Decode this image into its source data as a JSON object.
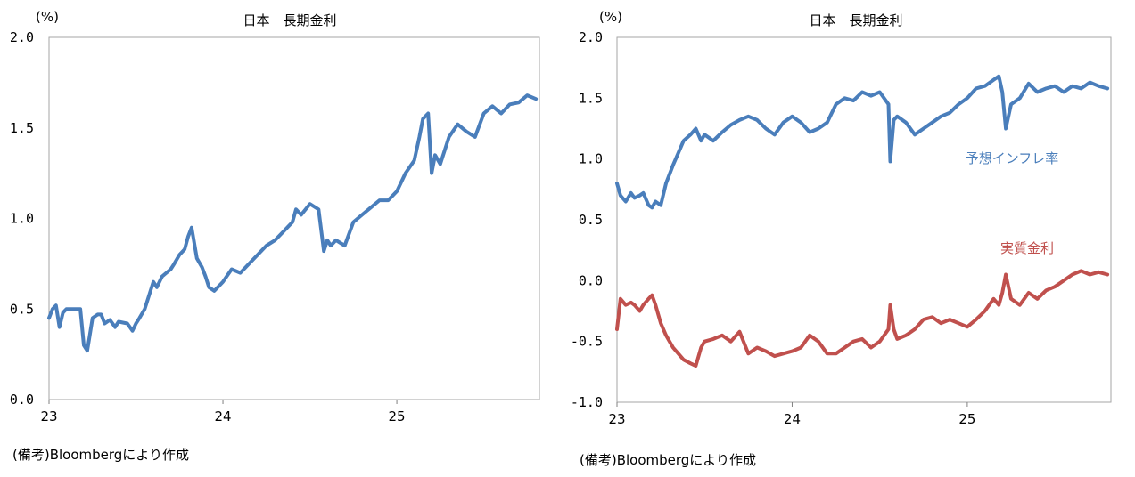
{
  "chart_data": [
    {
      "type": "line",
      "title": "日本　長期金利",
      "unit_label": "(%)",
      "ylim": [
        0.0,
        2.0
      ],
      "yticks": [
        "2.0",
        "1.5",
        "1.0",
        "0.5",
        "0.0"
      ],
      "xticks": [
        "23",
        "24",
        "25"
      ],
      "xlim": [
        23.0,
        25.82
      ],
      "grid": false,
      "legend": "none",
      "series": [
        {
          "color": "#4a7ebb",
          "x": [
            23.0,
            23.02,
            23.04,
            23.06,
            23.08,
            23.1,
            23.15,
            23.18,
            23.2,
            23.22,
            23.25,
            23.28,
            23.3,
            23.32,
            23.35,
            23.38,
            23.4,
            23.45,
            23.48,
            23.5,
            23.52,
            23.55,
            23.6,
            23.62,
            23.65,
            23.7,
            23.72,
            23.75,
            23.78,
            23.8,
            23.82,
            23.85,
            23.88,
            23.9,
            23.92,
            23.95,
            24.0,
            24.05,
            24.1,
            24.15,
            24.2,
            24.25,
            24.3,
            24.35,
            24.4,
            24.42,
            24.45,
            24.5,
            24.55,
            24.58,
            24.6,
            24.62,
            24.65,
            24.7,
            24.75,
            24.8,
            24.85,
            24.9,
            24.95,
            25.0,
            25.05,
            25.1,
            25.13,
            25.15,
            25.18,
            25.2,
            25.22,
            25.25,
            25.3,
            25.35,
            25.4,
            25.45,
            25.5,
            25.55,
            25.6,
            25.65,
            25.7,
            25.75,
            25.8
          ],
          "values": [
            0.45,
            0.5,
            0.52,
            0.4,
            0.48,
            0.5,
            0.5,
            0.5,
            0.3,
            0.27,
            0.45,
            0.47,
            0.47,
            0.42,
            0.44,
            0.4,
            0.43,
            0.42,
            0.38,
            0.42,
            0.45,
            0.5,
            0.65,
            0.62,
            0.68,
            0.72,
            0.75,
            0.8,
            0.83,
            0.9,
            0.95,
            0.78,
            0.73,
            0.68,
            0.62,
            0.6,
            0.65,
            0.72,
            0.7,
            0.75,
            0.8,
            0.85,
            0.88,
            0.93,
            0.98,
            1.05,
            1.02,
            1.08,
            1.05,
            0.82,
            0.88,
            0.85,
            0.88,
            0.85,
            0.98,
            1.02,
            1.06,
            1.1,
            1.1,
            1.15,
            1.25,
            1.32,
            1.45,
            1.55,
            1.58,
            1.25,
            1.35,
            1.3,
            1.45,
            1.52,
            1.48,
            1.45,
            1.58,
            1.62,
            1.58,
            1.63,
            1.64,
            1.68,
            1.66
          ]
        }
      ],
      "note": "(備考)Bloombergにより作成"
    },
    {
      "type": "line",
      "title": "日本　長期金利",
      "unit_label": "(%)",
      "ylim": [
        -1.0,
        2.0
      ],
      "yticks": [
        "2.0",
        "1.5",
        "1.0",
        "0.5",
        "0.0",
        "-0.5",
        "-1.0"
      ],
      "xticks": [
        "23",
        "24",
        "25"
      ],
      "xlim": [
        23.0,
        25.82
      ],
      "grid": false,
      "legend": "inline",
      "series": [
        {
          "name": "予想インフレ率",
          "color": "#4a7ebb",
          "x": [
            23.0,
            23.02,
            23.05,
            23.08,
            23.1,
            23.13,
            23.15,
            23.18,
            23.2,
            23.22,
            23.25,
            23.28,
            23.32,
            23.35,
            23.38,
            23.42,
            23.45,
            23.48,
            23.5,
            23.55,
            23.6,
            23.65,
            23.7,
            23.75,
            23.8,
            23.85,
            23.9,
            23.95,
            24.0,
            24.05,
            24.1,
            24.15,
            24.2,
            24.25,
            24.3,
            24.35,
            24.4,
            24.45,
            24.5,
            24.55,
            24.56,
            24.58,
            24.6,
            24.65,
            24.7,
            24.75,
            24.8,
            24.85,
            24.9,
            24.95,
            25.0,
            25.05,
            25.1,
            25.15,
            25.18,
            25.2,
            25.22,
            25.25,
            25.3,
            25.35,
            25.4,
            25.45,
            25.5,
            25.55,
            25.6,
            25.65,
            25.7,
            25.75,
            25.8
          ],
          "values": [
            0.8,
            0.7,
            0.65,
            0.72,
            0.68,
            0.7,
            0.72,
            0.62,
            0.6,
            0.65,
            0.62,
            0.8,
            0.95,
            1.05,
            1.15,
            1.2,
            1.25,
            1.15,
            1.2,
            1.15,
            1.22,
            1.28,
            1.32,
            1.35,
            1.32,
            1.25,
            1.2,
            1.3,
            1.35,
            1.3,
            1.22,
            1.25,
            1.3,
            1.45,
            1.5,
            1.48,
            1.55,
            1.52,
            1.55,
            1.45,
            0.98,
            1.32,
            1.35,
            1.3,
            1.2,
            1.25,
            1.3,
            1.35,
            1.38,
            1.45,
            1.5,
            1.58,
            1.6,
            1.65,
            1.68,
            1.55,
            1.25,
            1.45,
            1.5,
            1.62,
            1.55,
            1.58,
            1.6,
            1.55,
            1.6,
            1.58,
            1.63,
            1.6,
            1.58
          ]
        },
        {
          "name": "実質金利",
          "color": "#c0504d",
          "x": [
            23.0,
            23.02,
            23.05,
            23.08,
            23.1,
            23.13,
            23.15,
            23.18,
            23.2,
            23.22,
            23.25,
            23.28,
            23.32,
            23.35,
            23.38,
            23.42,
            23.45,
            23.48,
            23.5,
            23.55,
            23.6,
            23.65,
            23.7,
            23.75,
            23.8,
            23.85,
            23.9,
            23.95,
            24.0,
            24.05,
            24.1,
            24.15,
            24.2,
            24.25,
            24.3,
            24.35,
            24.4,
            24.45,
            24.5,
            24.55,
            24.56,
            24.58,
            24.6,
            24.65,
            24.7,
            24.75,
            24.8,
            24.85,
            24.9,
            24.95,
            25.0,
            25.05,
            25.1,
            25.15,
            25.18,
            25.2,
            25.22,
            25.25,
            25.3,
            25.35,
            25.4,
            25.45,
            25.5,
            25.55,
            25.6,
            25.65,
            25.7,
            25.75,
            25.8
          ],
          "values": [
            -0.4,
            -0.15,
            -0.2,
            -0.18,
            -0.2,
            -0.25,
            -0.2,
            -0.15,
            -0.12,
            -0.2,
            -0.35,
            -0.45,
            -0.55,
            -0.6,
            -0.65,
            -0.68,
            -0.7,
            -0.55,
            -0.5,
            -0.48,
            -0.45,
            -0.5,
            -0.42,
            -0.6,
            -0.55,
            -0.58,
            -0.62,
            -0.6,
            -0.58,
            -0.55,
            -0.45,
            -0.5,
            -0.6,
            -0.6,
            -0.55,
            -0.5,
            -0.48,
            -0.55,
            -0.5,
            -0.4,
            -0.2,
            -0.4,
            -0.48,
            -0.45,
            -0.4,
            -0.32,
            -0.3,
            -0.35,
            -0.32,
            -0.35,
            -0.38,
            -0.32,
            -0.25,
            -0.15,
            -0.2,
            -0.1,
            0.05,
            -0.15,
            -0.2,
            -0.1,
            -0.15,
            -0.08,
            -0.05,
            0.0,
            0.05,
            0.08,
            0.05,
            0.07,
            0.05
          ]
        }
      ],
      "note": "(備考)Bloombergにより作成"
    }
  ]
}
